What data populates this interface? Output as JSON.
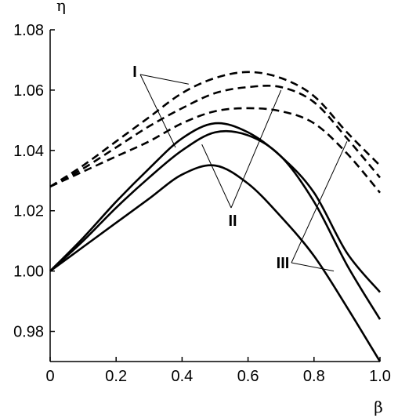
{
  "chart_data": {
    "type": "line",
    "xlabel": "β",
    "ylabel": "η",
    "xlim": [
      0,
      1.0
    ],
    "ylim": [
      0.97,
      1.08
    ],
    "x_ticks": [
      "0",
      "0.2",
      "0.4",
      "0.6",
      "0.8",
      "1.0"
    ],
    "y_ticks": [
      "0.98",
      "1.00",
      "1.02",
      "1.04",
      "1.06",
      "1.08"
    ],
    "grid": false,
    "legend": "none",
    "series": [
      {
        "style": "dashed",
        "x": [
          0,
          0.1,
          0.2,
          0.3,
          0.4,
          0.5,
          0.6,
          0.7,
          0.8,
          0.9,
          1.0
        ],
        "y": [
          1.028,
          1.035,
          1.043,
          1.051,
          1.059,
          1.064,
          1.066,
          1.064,
          1.058,
          1.046,
          1.035
        ]
      },
      {
        "style": "dashed",
        "x": [
          0,
          0.1,
          0.2,
          0.3,
          0.4,
          0.5,
          0.6,
          0.7,
          0.8,
          0.9,
          1.0
        ],
        "y": [
          1.028,
          1.034,
          1.041,
          1.048,
          1.054,
          1.059,
          1.061,
          1.061,
          1.056,
          1.044,
          1.031
        ]
      },
      {
        "style": "dashed",
        "x": [
          0,
          0.1,
          0.2,
          0.3,
          0.4,
          0.5,
          0.6,
          0.7,
          0.8,
          0.9,
          1.0
        ],
        "y": [
          1.028,
          1.033,
          1.038,
          1.043,
          1.049,
          1.053,
          1.054,
          1.053,
          1.049,
          1.039,
          1.026
        ]
      },
      {
        "style": "solid",
        "x": [
          0,
          0.1,
          0.2,
          0.3,
          0.4,
          0.5,
          0.6,
          0.7,
          0.8,
          0.9,
          1.0
        ],
        "y": [
          1.0,
          1.011,
          1.023,
          1.034,
          1.044,
          1.049,
          1.046,
          1.038,
          1.026,
          1.006,
          0.993
        ]
      },
      {
        "style": "solid",
        "x": [
          0,
          0.1,
          0.2,
          0.3,
          0.4,
          0.5,
          0.6,
          0.7,
          0.8,
          0.9,
          1.0
        ],
        "y": [
          1.0,
          1.01,
          1.021,
          1.031,
          1.04,
          1.046,
          1.045,
          1.038,
          1.023,
          1.002,
          0.984
        ]
      },
      {
        "style": "solid",
        "x": [
          0,
          0.1,
          0.2,
          0.3,
          0.4,
          0.5,
          0.6,
          0.7,
          0.8,
          0.9,
          1.0
        ],
        "y": [
          1.0,
          1.008,
          1.016,
          1.024,
          1.032,
          1.035,
          1.029,
          1.018,
          1.005,
          0.988,
          0.97
        ]
      }
    ],
    "annotations": [
      {
        "text": "I",
        "pointers": [
          {
            "x": 0.42,
            "y": 1.062
          },
          {
            "x": 0.38,
            "y": 1.041
          }
        ]
      },
      {
        "text": "II",
        "pointers": [
          {
            "x": 0.46,
            "y": 1.042
          },
          {
            "x": 0.7,
            "y": 1.06
          }
        ]
      },
      {
        "text": "III",
        "pointers": [
          {
            "x": 0.9,
            "y": 1.043
          },
          {
            "x": 0.86,
            "y": 1.0
          }
        ]
      }
    ]
  }
}
